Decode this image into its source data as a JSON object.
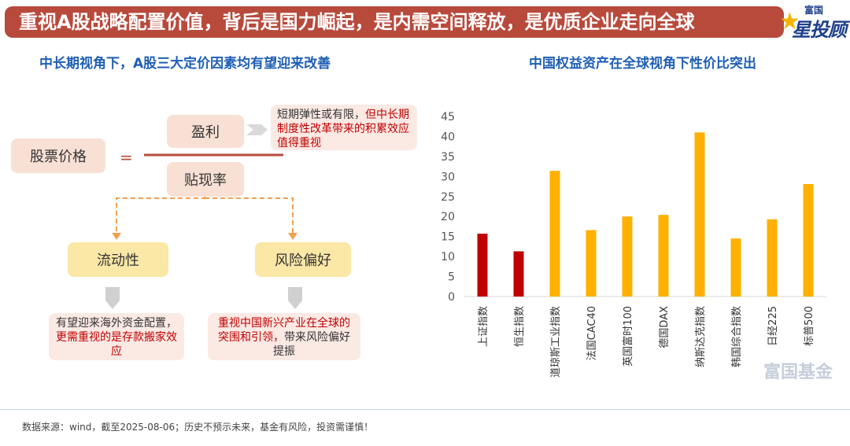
{
  "banner": {
    "title": "重视A股战略配置价值，背后是国力崛起，是内需空间释放，是优质企业走向全球"
  },
  "logo": {
    "top": "富国",
    "main": "星投顾"
  },
  "left": {
    "title": "中长期视角下，A股三大定价因素均有望迎来改善",
    "stock_price": "股票价格",
    "equals": "=",
    "earnings": "盈利",
    "discount_rate": "贴现率",
    "liquidity": "流动性",
    "risk_appetite": "风险偏好",
    "note_earnings_a": "短期弹性或有限，",
    "note_earnings_b": "但中长期制度性改革带来的积累效应值得重视",
    "note_liquidity_a": "有望迎来海外资金配置，",
    "note_liquidity_b": "更需重视的是存款搬家效应",
    "note_risk_a": "重视中国新兴产业在全球的突围和引领，",
    "note_risk_b": "带来风险偏好提振"
  },
  "right": {
    "title": "中国权益资产在全球视角下性价比突出"
  },
  "chart_data": {
    "type": "bar",
    "title": "中国权益资产在全球视角下性价比突出",
    "categories": [
      "上证指数",
      "恒生指数",
      "道琼斯工业指数",
      "法国CAC40",
      "英国富时100",
      "德国DAX",
      "纳斯达克指数",
      "韩国综合指数",
      "日经225",
      "标普500"
    ],
    "values": [
      15.7,
      11.3,
      31.4,
      16.6,
      20.0,
      20.4,
      41.0,
      14.5,
      19.3,
      28.1
    ],
    "colors": [
      "#c00000",
      "#c00000",
      "#ffb000",
      "#ffb000",
      "#ffb000",
      "#ffb000",
      "#ffb000",
      "#ffb000",
      "#ffb000",
      "#ffb000"
    ],
    "yticks": [
      "0",
      "5",
      "10",
      "15",
      "20",
      "25",
      "30",
      "35",
      "40",
      "45"
    ],
    "ylim": [
      0,
      45
    ],
    "xlabel": "",
    "ylabel": "",
    "grid": false
  },
  "footer": "数据来源：wind，截至2025-08-06；历史不预示未来，基金有风险，投资需谨慎！",
  "watermark": "富国基金"
}
